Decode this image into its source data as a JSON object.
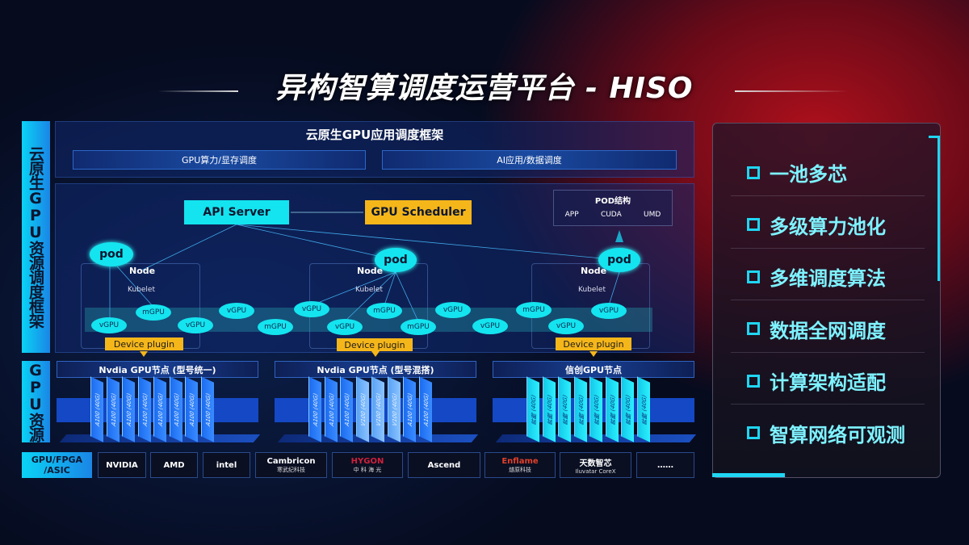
{
  "title": "异构智算调度运营平台 - HISO",
  "left_labels": {
    "scheduling": "云原生GPU资源调度框架",
    "resources": "GPU资源"
  },
  "framework": {
    "title": "云原生GPU应用调度框架",
    "bar_left": "GPU算力/显存调度",
    "bar_right": "AI应用/数据调度"
  },
  "diagram": {
    "api_server": "API Server",
    "gpu_scheduler": "GPU Scheduler",
    "pod_structure": {
      "title": "POD结构",
      "items": [
        "APP",
        "CUDA",
        "UMD"
      ]
    },
    "pod": "pod",
    "node": "Node",
    "kubelet": "Kubelet",
    "device_plugin": "Device plugin",
    "gpu_units": [
      "vGPU",
      "mGPU",
      "vGPU",
      "vGPU",
      "mGPU",
      "vGPU",
      "vGPU",
      "mGPU",
      "mGPU",
      "vGPU",
      "vGPU",
      "mGPU",
      "vGPU",
      "vGPU"
    ]
  },
  "gpu_nodes": [
    {
      "title": "Nvdia GPU节点 (型号统一)",
      "cards": [
        "A100 (40G)",
        "A100 (40G)",
        "A100 (40G)",
        "A100 (40G)",
        "A100 (40G)",
        "A100 (40G)",
        "A100 (40G)",
        "A100 (40G)"
      ]
    },
    {
      "title": "Nvdia GPU节点 (型号混搭)",
      "cards": [
        "A100 (40G)",
        "A100 (40G)",
        "A100 (40G)",
        "V100 (40G)",
        "V100 (40G)",
        "V100 (40G)",
        "A100 (40G)",
        "A100 (40G)"
      ]
    },
    {
      "title": "信创GPU节点",
      "cards": [
        "昇腾 (40G)",
        "昇腾 (40G)",
        "昇腾 (40G)",
        "昇腾 (40G)",
        "昇腾 (40G)",
        "昇腾 (40G)",
        "昇腾 (40G)",
        "昇腾 (40G)"
      ]
    }
  ],
  "vendors": {
    "label": "GPU/FPGA /ASIC",
    "items": [
      {
        "name": "NVIDIA",
        "sub": ""
      },
      {
        "name": "AMD",
        "sub": ""
      },
      {
        "name": "intel",
        "sub": ""
      },
      {
        "name": "Cambricon",
        "sub": "寒武纪科技"
      },
      {
        "name": "HYGON",
        "sub": "中 科 海 光"
      },
      {
        "name": "Ascend",
        "sub": ""
      },
      {
        "name": "Enflame",
        "sub": "燧原科技"
      },
      {
        "name": "天数智芯",
        "sub": "Iluvatar CoreX"
      },
      {
        "name": "……",
        "sub": ""
      }
    ]
  },
  "features": [
    "一池多芯",
    "多级算力池化",
    "多维调度算法",
    "数据全网调度",
    "计算架构适配",
    "智算网络可观测"
  ],
  "colors": {
    "cyan": "#14e4ef",
    "orange": "#f5b61a",
    "blue": "#1448c4",
    "red_glow": "#b0101c"
  }
}
